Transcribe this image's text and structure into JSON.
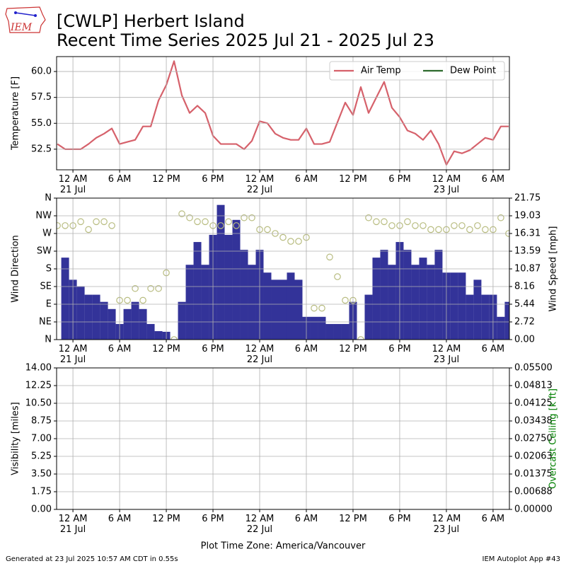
{
  "header": {
    "logo_text": "IEM",
    "title_line1": "[CWLP] Herbert Island",
    "title_line2": "Recent Time Series 2025 Jul 21 - 2025 Jul 23"
  },
  "chart_data": [
    {
      "type": "line",
      "ylabel": "Temperature [F]",
      "legend": "upper right",
      "x": [
        -2,
        -1,
        0,
        1,
        2,
        3,
        4,
        5,
        6,
        7,
        8,
        9,
        10,
        11,
        12,
        13,
        14,
        15,
        16,
        17,
        18,
        19,
        20,
        21,
        22,
        23,
        24,
        25,
        26,
        27,
        28,
        29,
        30,
        31,
        32,
        33,
        34,
        35,
        36,
        37,
        38,
        39,
        40,
        41,
        42,
        43,
        44,
        45,
        46,
        47,
        48,
        49,
        50,
        51,
        52,
        53,
        54,
        55,
        56
      ],
      "xlim": [
        -2.1,
        56.1
      ],
      "xticks": [
        {
          "value": 0,
          "label": "12 AM\n21 Jul"
        },
        {
          "value": 6,
          "label": "6 AM"
        },
        {
          "value": 12,
          "label": "12 PM"
        },
        {
          "value": 18,
          "label": "6 PM"
        },
        {
          "value": 24,
          "label": "12 AM\n22 Jul"
        },
        {
          "value": 30,
          "label": "6 AM"
        },
        {
          "value": 36,
          "label": "12 PM"
        },
        {
          "value": 42,
          "label": "6 PM"
        },
        {
          "value": 48,
          "label": "12 AM\n23 Jul"
        },
        {
          "value": 54,
          "label": "6 AM"
        }
      ],
      "ylim": [
        50.51,
        61.44
      ],
      "yticks": [
        52.5,
        {
          "value": 55,
          "label": "55.0"
        },
        57.5,
        {
          "value": 60,
          "label": "60.0"
        }
      ],
      "grid": true,
      "series": [
        {
          "name": "Air Temp",
          "color": "#d6616b",
          "values": [
            53.0,
            52.5,
            52.5,
            52.5,
            53.0,
            53.6,
            54.0,
            54.5,
            53.0,
            53.2,
            53.4,
            54.7,
            54.7,
            57.2,
            58.7,
            61.0,
            57.7,
            56.0,
            56.7,
            56.0,
            53.8,
            53.0,
            53.0,
            53.0,
            52.5,
            53.3,
            55.2,
            55.0,
            54.0,
            53.6,
            53.4,
            53.4,
            54.5,
            53.0,
            53.0,
            53.2,
            55.1,
            57.0,
            55.8,
            58.5,
            56.0,
            57.5,
            59.0,
            56.5,
            55.6,
            54.3,
            54.0,
            53.4,
            54.3,
            53.0,
            51.0,
            52.3,
            52.1,
            52.4,
            53.0,
            53.6,
            53.4,
            54.7,
            54.7
          ]
        },
        {
          "name": "Dew Point",
          "color": "#2e6b2e",
          "values": [
            null,
            null,
            null,
            null,
            null,
            null,
            null,
            null,
            null,
            null,
            null,
            null,
            null,
            null,
            null,
            null,
            null,
            null,
            null,
            null,
            null,
            null,
            null,
            null,
            null,
            null,
            null,
            null,
            null,
            null,
            null,
            null,
            null,
            null,
            null,
            null,
            null,
            null,
            null,
            null,
            null,
            null,
            null,
            null,
            null,
            null,
            null,
            null,
            null,
            null,
            null,
            null,
            null,
            null,
            null,
            null,
            null,
            null,
            null
          ]
        }
      ]
    },
    {
      "type": "bar",
      "ylabel": "Wind Direction",
      "y2label": "Wind Speed [mph]",
      "x": [
        -2,
        -1,
        0,
        1,
        2,
        3,
        4,
        5,
        6,
        7,
        8,
        9,
        10,
        11,
        12,
        13,
        14,
        15,
        16,
        17,
        18,
        19,
        20,
        21,
        22,
        23,
        24,
        25,
        26,
        27,
        28,
        29,
        30,
        31,
        32,
        33,
        34,
        35,
        36,
        37,
        38,
        39,
        40,
        41,
        42,
        43,
        44,
        45,
        46,
        47,
        48,
        49,
        50,
        51,
        52,
        53,
        54,
        55,
        56
      ],
      "xlim": [
        -2.1,
        56.1
      ],
      "xticks": [
        {
          "value": 0,
          "label": "12 AM\n21 Jul"
        },
        {
          "value": 6,
          "label": "6 AM"
        },
        {
          "value": 12,
          "label": "12 PM"
        },
        {
          "value": 18,
          "label": "6 PM"
        },
        {
          "value": 24,
          "label": "12 AM\n22 Jul"
        },
        {
          "value": 30,
          "label": "6 AM"
        },
        {
          "value": 36,
          "label": "12 PM"
        },
        {
          "value": 42,
          "label": "6 PM"
        },
        {
          "value": 48,
          "label": "12 AM\n23 Jul"
        },
        {
          "value": 54,
          "label": "6 AM"
        }
      ],
      "ylim": [
        0,
        360
      ],
      "yticks": [
        {
          "value": 0,
          "label": "N"
        },
        {
          "value": 45,
          "label": "NE"
        },
        {
          "value": 90,
          "label": "E"
        },
        {
          "value": 135,
          "label": "SE"
        },
        {
          "value": 180,
          "label": "S"
        },
        {
          "value": 225,
          "label": "SW"
        },
        {
          "value": 270,
          "label": "W"
        },
        {
          "value": 315,
          "label": "NW"
        },
        {
          "value": 360,
          "label": "N"
        }
      ],
      "y2lim": [
        0,
        21.75
      ],
      "y2ticks": [
        {
          "value": 0,
          "label": "0.00"
        },
        2.72,
        5.44,
        8.16,
        10.87,
        13.59,
        16.31,
        19.03,
        21.75
      ],
      "grid": true,
      "series": [
        {
          "type": "bar",
          "axis": "y2",
          "color": "#333399",
          "values": [
            null,
            12.6,
            9.2,
            8.2,
            6.9,
            6.9,
            5.8,
            4.7,
            2.4,
            4.7,
            5.8,
            4.7,
            2.4,
            1.3,
            1.2,
            0,
            5.8,
            11.5,
            15.0,
            11.5,
            16.1,
            20.7,
            16.1,
            18.4,
            13.8,
            11.5,
            13.8,
            10.3,
            9.2,
            9.2,
            10.3,
            9.2,
            3.5,
            3.5,
            3.5,
            2.4,
            2.4,
            2.4,
            5.8,
            0,
            6.9,
            12.6,
            13.8,
            11.5,
            15.0,
            13.8,
            11.5,
            12.6,
            11.5,
            13.8,
            10.3,
            10.3,
            10.3,
            6.9,
            9.2,
            6.9,
            6.9,
            3.5,
            5.8
          ]
        },
        {
          "type": "scatter",
          "color": "#b8bc80",
          "values": [
            290,
            290,
            290,
            300,
            280,
            300,
            300,
            290,
            100,
            100,
            130,
            100,
            130,
            130,
            170,
            0,
            320,
            310,
            300,
            300,
            290,
            290,
            300,
            290,
            310,
            310,
            280,
            280,
            270,
            260,
            250,
            250,
            260,
            80,
            80,
            210,
            160,
            100,
            100,
            0,
            310,
            300,
            300,
            290,
            290,
            300,
            290,
            290,
            280,
            280,
            280,
            290,
            290,
            280,
            290,
            280,
            280,
            310,
            270
          ]
        }
      ]
    },
    {
      "type": "line",
      "ylabel": "Visibility [miles]",
      "y2label": "Overcast Ceiling [k ft]",
      "y2label_color": "#008000",
      "xlabel": "Plot Time Zone: America/Vancouver",
      "xlim": [
        -2.1,
        56.1
      ],
      "xticks": [
        {
          "value": 0,
          "label": "12 AM\n21 Jul"
        },
        {
          "value": 6,
          "label": "6 AM"
        },
        {
          "value": 12,
          "label": "12 PM"
        },
        {
          "value": 18,
          "label": "6 PM"
        },
        {
          "value": 24,
          "label": "12 AM\n22 Jul"
        },
        {
          "value": 30,
          "label": "6 AM"
        },
        {
          "value": 36,
          "label": "12 PM"
        },
        {
          "value": 42,
          "label": "6 PM"
        },
        {
          "value": 48,
          "label": "12 AM\n23 Jul"
        },
        {
          "value": 54,
          "label": "6 AM"
        }
      ],
      "ylim": [
        0,
        14
      ],
      "yticks": [
        {
          "value": 0,
          "label": "0.00"
        },
        1.75,
        {
          "value": 3.5,
          "label": "3.50"
        },
        5.25,
        {
          "value": 7,
          "label": "7.00"
        },
        8.75,
        {
          "value": 10.5,
          "label": "10.50"
        },
        12.25,
        {
          "value": 14,
          "label": "14.00"
        }
      ],
      "y2lim": [
        0,
        0.055
      ],
      "y2ticks": [
        {
          "value": 0,
          "label": "0.00000"
        },
        {
          "value": 0.006875,
          "label": "0.00688"
        },
        0.01375,
        {
          "value": 0.020625,
          "label": "0.02063"
        },
        {
          "value": 0.0275,
          "label": "0.02750"
        },
        {
          "value": 0.034375,
          "label": "0.03438"
        },
        0.04125,
        {
          "value": 0.048125,
          "label": "0.04813"
        },
        {
          "value": 0.055,
          "label": "0.05500"
        }
      ],
      "grid": true,
      "series": []
    }
  ],
  "footer": {
    "left": "Generated at 23 Jul 2025 10:57 AM CDT in 0.55s",
    "right": "IEM Autoplot App #43"
  }
}
